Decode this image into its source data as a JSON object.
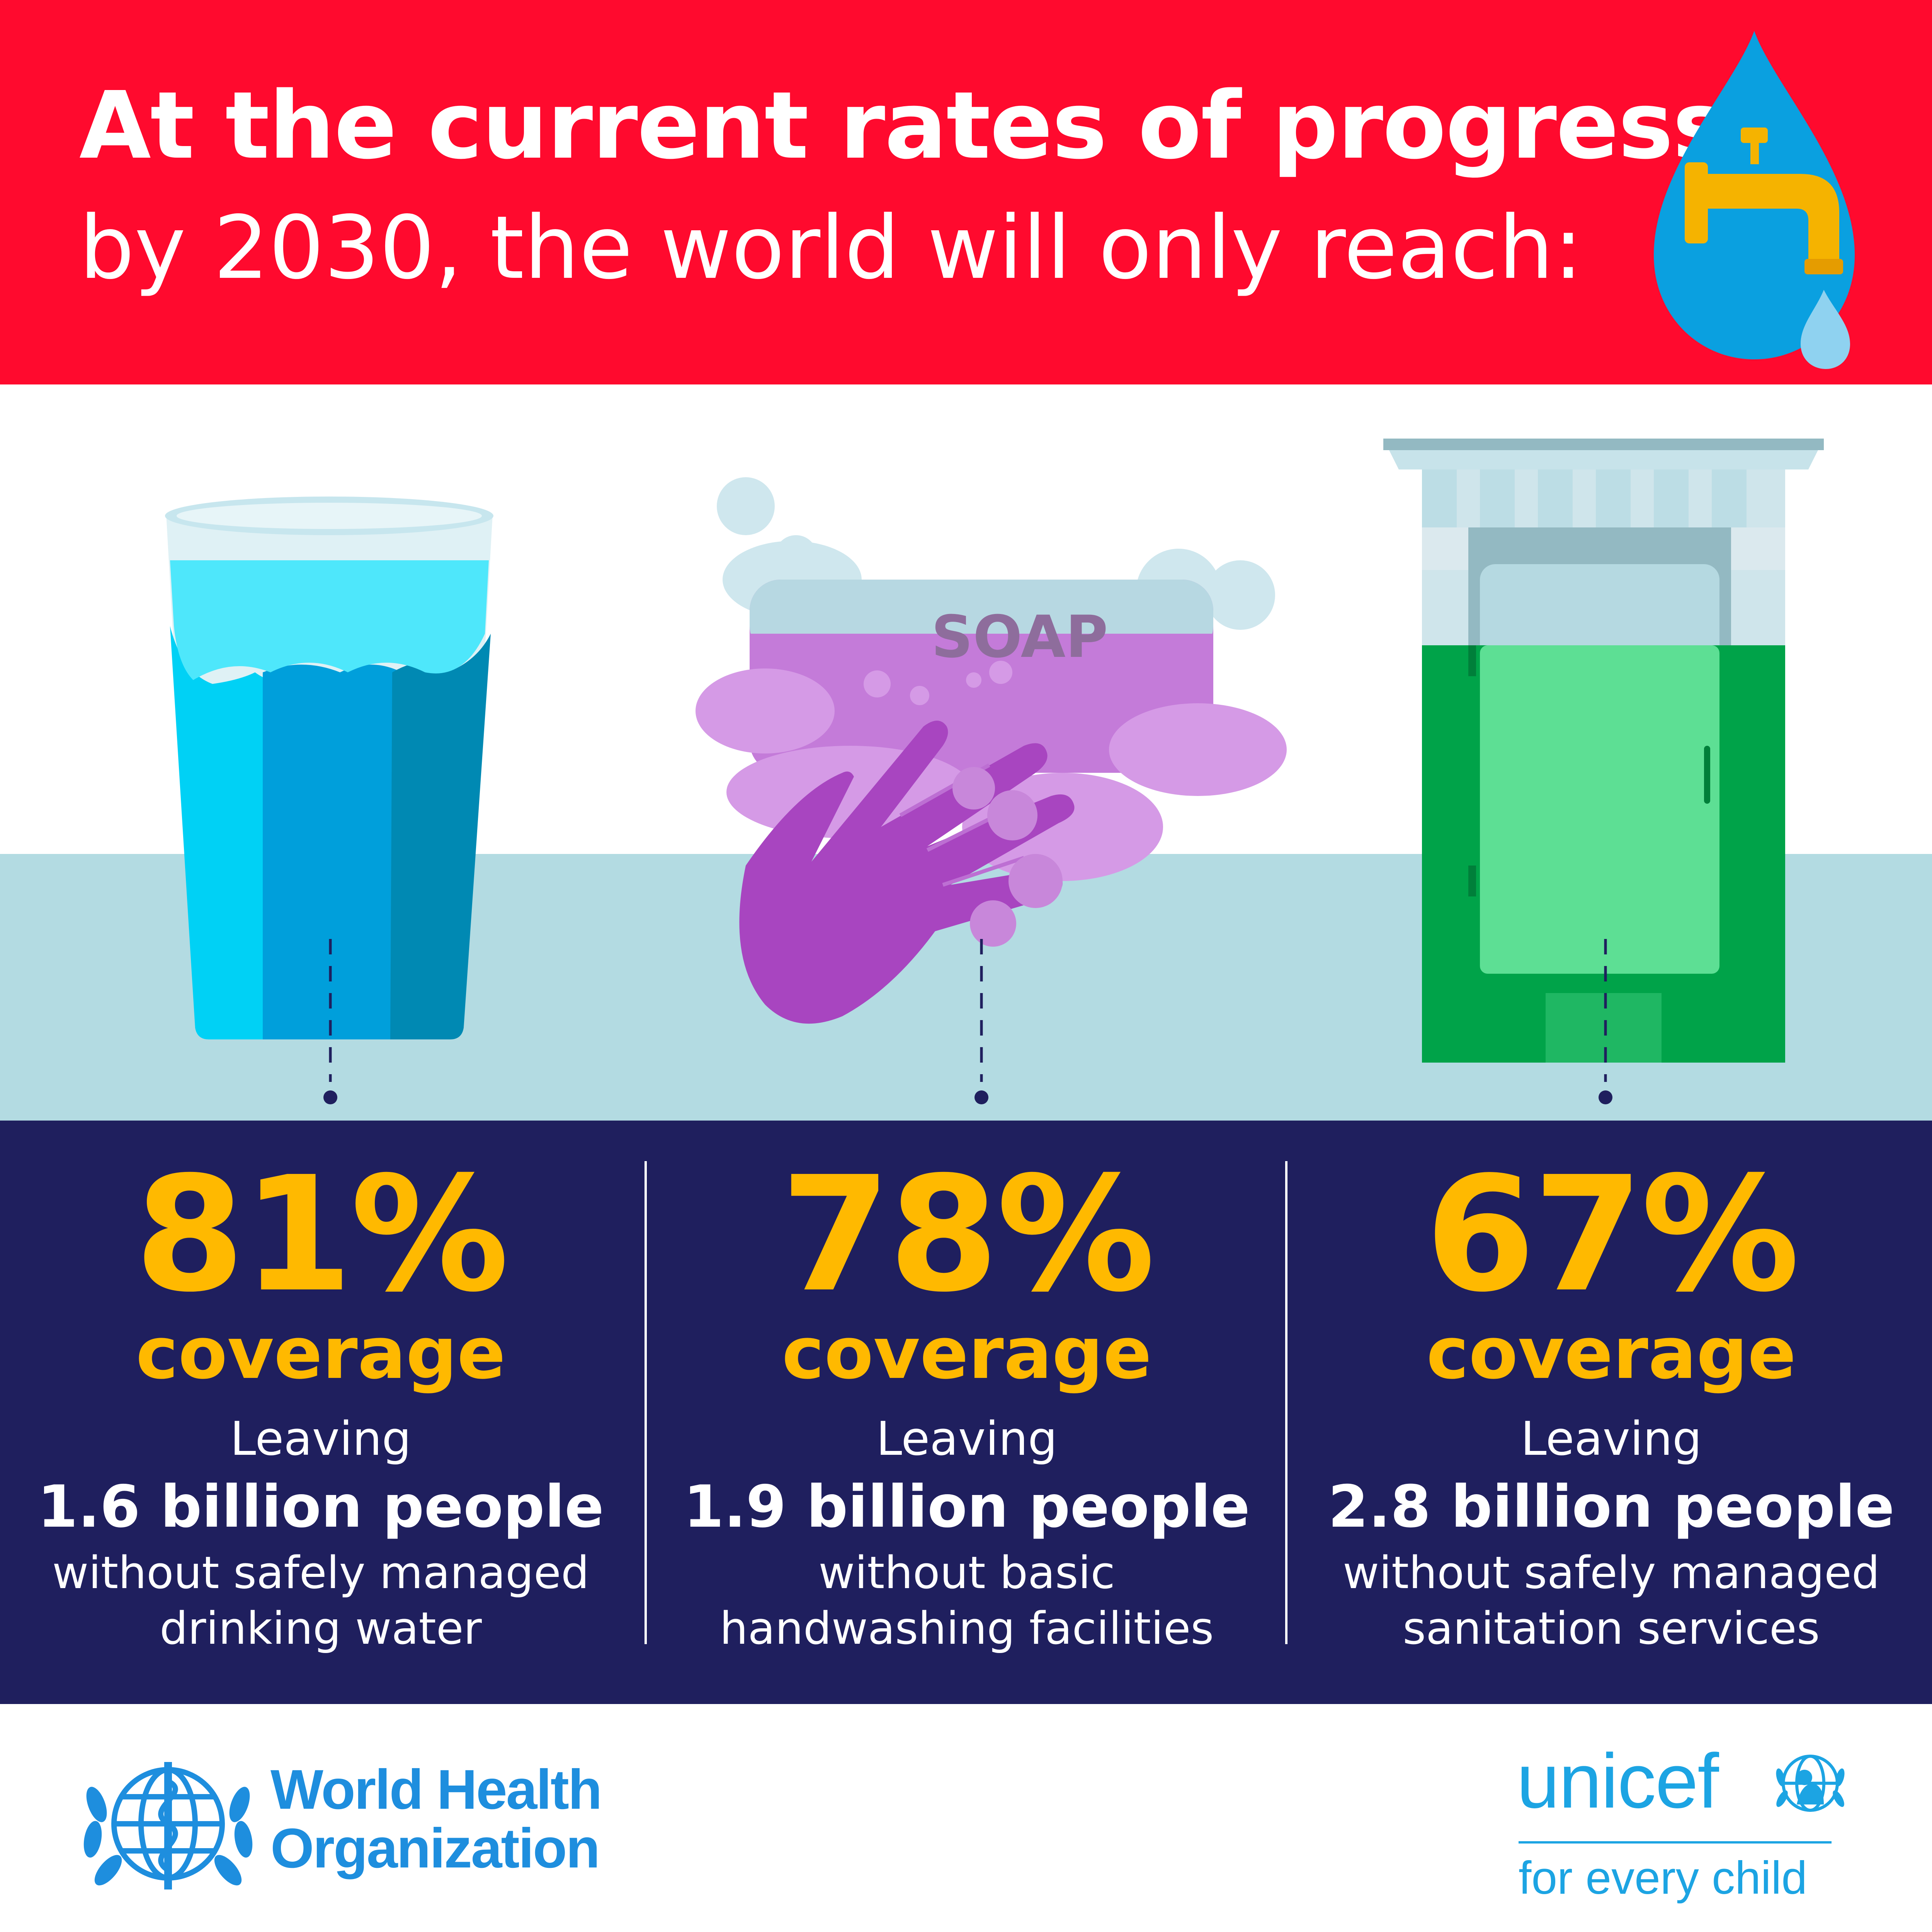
{
  "header": {
    "headline_line1": "At the current rates of progress,",
    "headline_line2": "by 2030, the world will only reach:"
  },
  "illustrations": {
    "water_glass": "water-glass-icon",
    "soap_hands": "soap-handwashing-icon",
    "toilet": "toilet-icon",
    "soap_label": "SOAP"
  },
  "stats": [
    {
      "percent": "81%",
      "coverage_label": "coverage",
      "leaving_label": "Leaving",
      "people": "1.6 billion people",
      "description": "without safely managed\ndrinking water"
    },
    {
      "percent": "78%",
      "coverage_label": "coverage",
      "leaving_label": "Leaving",
      "people": "1.9 billion people",
      "description": "without basic\nhandwashing facilities"
    },
    {
      "percent": "67%",
      "coverage_label": "coverage",
      "leaving_label": "Leaving",
      "people": "2.8 billion people",
      "description": "without safely managed\nsanitation services"
    }
  ],
  "footer": {
    "who_name": "World Health\nOrganization",
    "unicef_name": "unicef",
    "unicef_tagline": "for every child"
  },
  "colors": {
    "header_red": "#ff0a2e",
    "stats_navy": "#1f1f5e",
    "stat_yellow": "#ffb900",
    "who_blue": "#1e8ede",
    "unicef_blue": "#1ca4e3",
    "counter_blue": "#b3dbe2"
  }
}
